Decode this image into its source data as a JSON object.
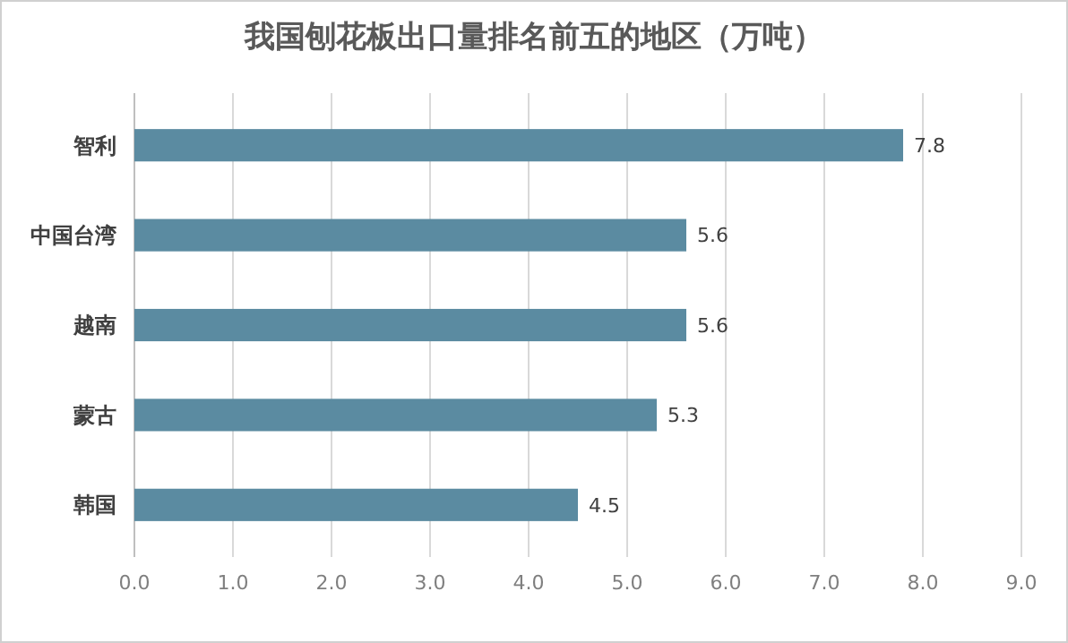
{
  "chart_data": {
    "type": "bar",
    "orientation": "horizontal",
    "title": "我国刨花板出口量排名前五的地区（万吨）",
    "categories": [
      "智利",
      "中国台湾",
      "越南",
      "蒙古",
      "韩国"
    ],
    "values": [
      7.8,
      5.6,
      5.6,
      5.3,
      4.5
    ],
    "color": "#5b8ba1",
    "xlim": [
      0,
      9
    ],
    "xticks": [
      {
        "value": 0,
        "label": "0.0"
      },
      {
        "value": 1,
        "label": "1.0"
      },
      {
        "value": 2,
        "label": "2.0"
      },
      {
        "value": 3,
        "label": "3.0"
      },
      {
        "value": 4,
        "label": "4.0"
      },
      {
        "value": 5,
        "label": "5.0"
      },
      {
        "value": 6,
        "label": "6.0"
      },
      {
        "value": 7,
        "label": "7.0"
      },
      {
        "value": 8,
        "label": "8.0"
      },
      {
        "value": 9,
        "label": "9.0"
      }
    ],
    "grid": "x",
    "data_labels": true
  }
}
